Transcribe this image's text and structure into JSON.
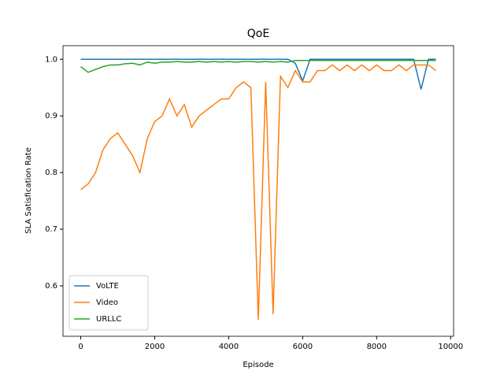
{
  "chart_data": {
    "type": "line",
    "title": "QoE",
    "x_label": "Episode",
    "y_label": "SLA Satisfication Rate",
    "x": [
      0,
      200,
      400,
      600,
      800,
      1000,
      1200,
      1400,
      1600,
      1800,
      2000,
      2200,
      2400,
      2600,
      2800,
      3000,
      3200,
      3400,
      3600,
      3800,
      4000,
      4200,
      4400,
      4600,
      4800,
      5000,
      5200,
      5400,
      5600,
      5800,
      6000,
      6200,
      6400,
      6600,
      6800,
      7000,
      7200,
      7400,
      7600,
      7800,
      8000,
      8200,
      8400,
      8600,
      8800,
      9000,
      9200,
      9400,
      9600
    ],
    "series": [
      {
        "name": "VoLTE",
        "color": "#1f77b4",
        "values": [
          1,
          1,
          1,
          1,
          1,
          1,
          1,
          1,
          1,
          1,
          1,
          1,
          1,
          1,
          1,
          1,
          1,
          1,
          1,
          1,
          1,
          1,
          1,
          1,
          1,
          1,
          1,
          1,
          1,
          0.993,
          0.962,
          1,
          1,
          1,
          1,
          1,
          1,
          1,
          1,
          1,
          1,
          1,
          1,
          1,
          1,
          1,
          0.947,
          1,
          1
        ]
      },
      {
        "name": "Video",
        "color": "#ff7f0e",
        "values": [
          0.77,
          0.78,
          0.8,
          0.84,
          0.86,
          0.87,
          0.85,
          0.83,
          0.8,
          0.86,
          0.89,
          0.9,
          0.93,
          0.9,
          0.92,
          0.88,
          0.9,
          0.91,
          0.92,
          0.93,
          0.93,
          0.95,
          0.96,
          0.95,
          0.54,
          0.96,
          0.55,
          0.97,
          0.95,
          0.98,
          0.96,
          0.96,
          0.98,
          0.98,
          0.99,
          0.98,
          0.99,
          0.98,
          0.99,
          0.98,
          0.99,
          0.98,
          0.98,
          0.99,
          0.98,
          0.99,
          0.99,
          0.99,
          0.98
        ]
      },
      {
        "name": "URLLC",
        "color": "#2ca02c",
        "values": [
          0.987,
          0.977,
          0.982,
          0.987,
          0.99,
          0.99,
          0.992,
          0.993,
          0.99,
          0.995,
          0.993,
          0.995,
          0.995,
          0.996,
          0.995,
          0.995,
          0.996,
          0.995,
          0.996,
          0.995,
          0.996,
          0.995,
          0.996,
          0.996,
          0.995,
          0.996,
          0.995,
          0.996,
          0.995,
          0.998,
          0.998,
          0.998,
          0.998,
          0.998,
          0.998,
          0.998,
          0.998,
          0.998,
          0.998,
          0.998,
          0.998,
          0.998,
          0.998,
          0.998,
          0.998,
          0.998,
          0.998,
          0.998,
          0.998
        ]
      }
    ],
    "xlim": [
      -480,
      10080
    ],
    "ylim": [
      0.511,
      1.024
    ],
    "xticks": [
      0,
      2000,
      4000,
      6000,
      8000,
      10000
    ],
    "yticks": [
      {
        "value": 0.6,
        "label": "0.6"
      },
      {
        "value": 0.7,
        "label": "0.7"
      },
      {
        "value": 0.8,
        "label": "0.8"
      },
      {
        "value": 0.9,
        "label": "0.9"
      },
      {
        "value": 1.0,
        "label": "1.0"
      }
    ],
    "legend": "lower left",
    "grid": false
  }
}
